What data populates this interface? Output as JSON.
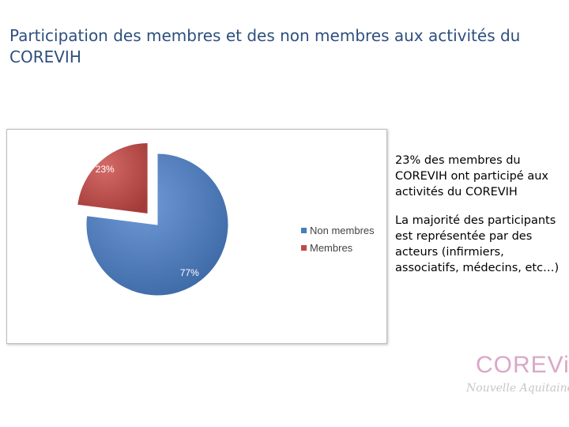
{
  "title": "Participation des membres et des non membres aux activités du COREVIH",
  "chart_data": {
    "type": "pie",
    "categories": [
      "Non membres",
      "Membres"
    ],
    "values": [
      77,
      23
    ],
    "labels": [
      "77%",
      "23%"
    ],
    "colors": [
      "#4a7ebb",
      "#be4b48"
    ],
    "legend_position": "right"
  },
  "side_text": {
    "para1": "23% des membres du COREVIH ont participé aux activités du COREVIH",
    "para2": "La majorité des participants est représentée par des acteurs (infirmiers, associatifs, médecins, etc…)"
  },
  "logo": {
    "word": "COREViH",
    "sub": "Nouvelle Aquitaine"
  }
}
